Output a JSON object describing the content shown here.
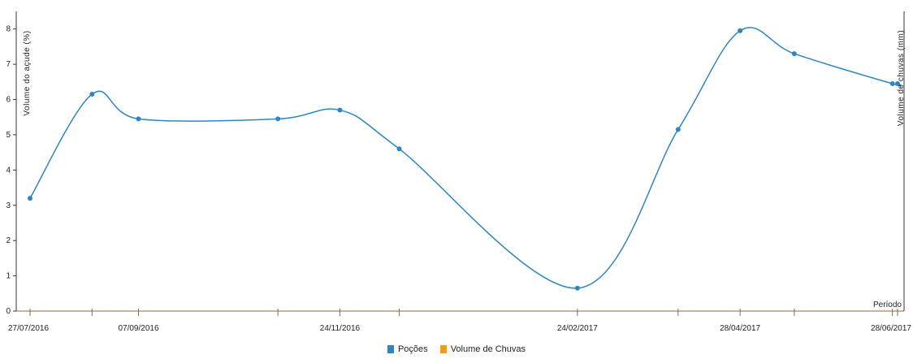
{
  "chart_data": {
    "type": "line",
    "title": "",
    "xlabel": "Período",
    "ylabel": "Volume do açude (%)",
    "ylabel_right": "Volume de chuvas (mm)",
    "ylim": [
      0,
      8.5
    ],
    "y_ticks": [
      "0",
      "1",
      "2",
      "3",
      "4",
      "5",
      "6",
      "7",
      "8"
    ],
    "x_tick_labels": [
      "27/07/2016",
      "07/09/2016",
      "24/11/2016",
      "24/02/2017",
      "28/04/2017",
      "28/06/2017"
    ],
    "series": [
      {
        "name": "Poções",
        "color": "#2e86c1",
        "points": [
          {
            "x": "2016-07-27",
            "y": 3.2
          },
          {
            "x": "2016-08-20",
            "y": 6.15
          },
          {
            "x": "2016-09-07",
            "y": 5.45
          },
          {
            "x": "2016-10-31",
            "y": 5.45
          },
          {
            "x": "2016-11-24",
            "y": 5.7
          },
          {
            "x": "2016-12-17",
            "y": 4.6
          },
          {
            "x": "2017-02-24",
            "y": 0.65
          },
          {
            "x": "2017-04-04",
            "y": 5.15
          },
          {
            "x": "2017-04-28",
            "y": 7.95
          },
          {
            "x": "2017-05-19",
            "y": 7.3
          },
          {
            "x": "2017-06-26",
            "y": 6.45
          },
          {
            "x": "2017-06-28",
            "y": 6.45
          }
        ]
      },
      {
        "name": "Volume de Chuvas",
        "color": "#f39c12",
        "points": []
      }
    ],
    "legend_position": "bottom-center",
    "grid": false
  }
}
